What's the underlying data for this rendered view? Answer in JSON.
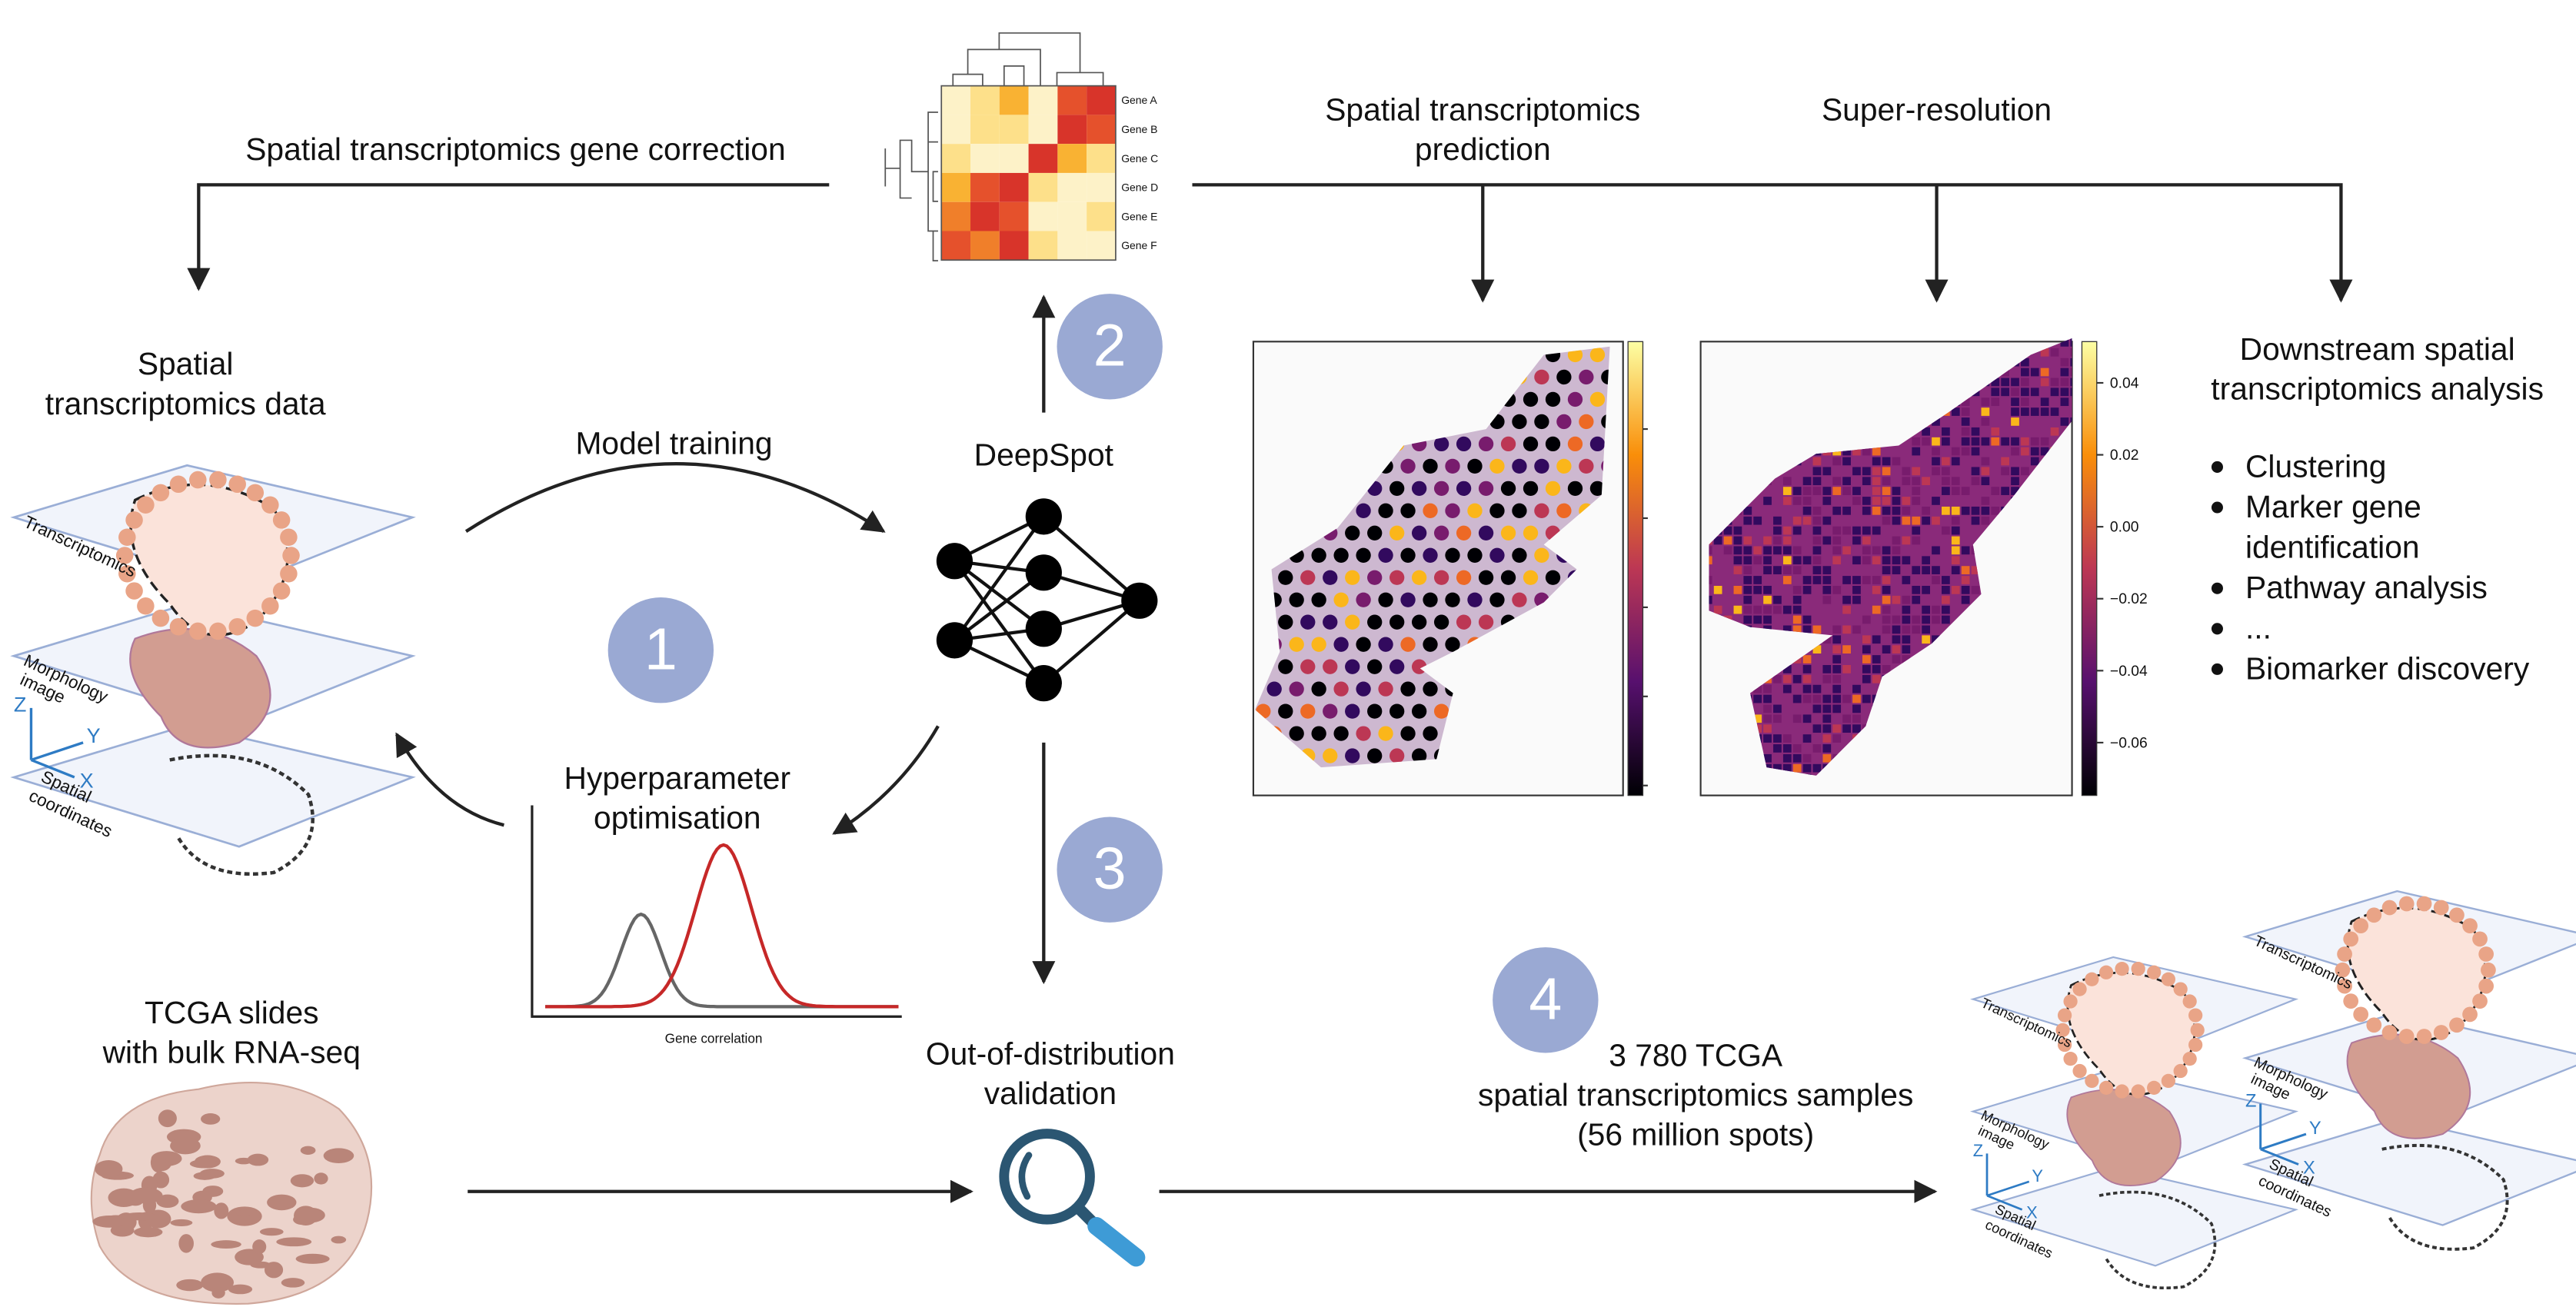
{
  "gene_correction": "Spatial transcriptomics gene correction",
  "heatmap": {
    "genes": [
      "Gene A",
      "Gene B",
      "Gene C",
      "Gene D",
      "Gene E",
      "Gene F"
    ]
  },
  "prediction": [
    "Spatial transcriptomics",
    "prediction"
  ],
  "super_resolution": "Super-resolution",
  "downstream": {
    "title": [
      "Downstream spatial",
      "transcriptomics analysis"
    ],
    "items": [
      [
        "Clustering"
      ],
      [
        "Marker gene",
        "identification"
      ],
      [
        "Pathway analysis"
      ],
      [
        "..."
      ],
      [
        "Biomarker discovery"
      ]
    ]
  },
  "st_data": {
    "title": [
      "Spatial",
      "transcriptomics data"
    ],
    "layers": {
      "transcriptomics": "Transcriptomics",
      "morphology": [
        "Morphology",
        "image"
      ],
      "spatial": [
        "Spatial",
        "coordinates"
      ]
    },
    "axes": [
      "Z",
      "Y",
      "X"
    ]
  },
  "model_training": "Model training",
  "deepspot": "DeepSpot",
  "steps": [
    "1",
    "2",
    "3",
    "4"
  ],
  "hyperparameter": {
    "title": [
      "Hyperparameter",
      "optimisation"
    ],
    "x_label": "Gene correlation"
  },
  "tcga": [
    "TCGA slides",
    "with bulk RNA-seq"
  ],
  "ood": [
    "Out-of-distribution",
    "validation"
  ],
  "output": [
    "3 780 TCGA",
    "spatial transcriptomics samples",
    "(56 million spots)"
  ],
  "colorbar_ticks": [
    "0.04",
    "0.02",
    "0.00",
    "−0.02",
    "−0.04",
    "−0.06"
  ]
}
